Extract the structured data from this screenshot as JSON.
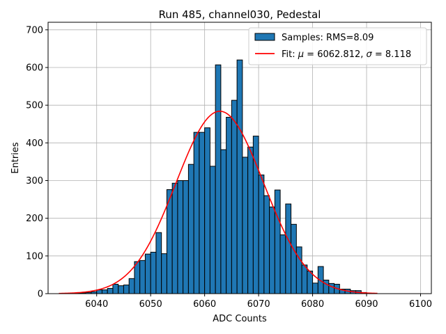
{
  "chart_data": {
    "type": "bar",
    "title": "Run 485, channel030, Pedestal",
    "xlabel": "ADC Counts",
    "ylabel": "Entries",
    "xlim": [
      6031,
      6102
    ],
    "ylim": [
      0,
      720
    ],
    "xticks": [
      6040,
      6050,
      6060,
      6070,
      6080,
      6090,
      6100
    ],
    "yticks": [
      0,
      100,
      200,
      300,
      400,
      500,
      600,
      700
    ],
    "grid": true,
    "legend_position": "top-right",
    "bin_width": 1,
    "histogram": {
      "name": "Samples: RMS=8.09",
      "color": "#1f77b4",
      "edge_color": "#000000",
      "bins": [
        6033,
        6034,
        6035,
        6036,
        6037,
        6038,
        6039,
        6040,
        6041,
        6042,
        6043,
        6044,
        6045,
        6046,
        6047,
        6048,
        6049,
        6050,
        6051,
        6052,
        6053,
        6054,
        6055,
        6056,
        6057,
        6058,
        6059,
        6060,
        6061,
        6062,
        6063,
        6064,
        6065,
        6066,
        6067,
        6068,
        6069,
        6070,
        6071,
        6072,
        6073,
        6074,
        6075,
        6076,
        6077,
        6078,
        6079,
        6080,
        6081,
        6082,
        6083,
        6084,
        6085,
        6086,
        6087,
        6088,
        6089,
        6090,
        6091
      ],
      "values": [
        0,
        0,
        1,
        1,
        2,
        3,
        5,
        10,
        10,
        14,
        25,
        21,
        23,
        40,
        85,
        88,
        105,
        110,
        162,
        106,
        276,
        293,
        300,
        300,
        343,
        428,
        428,
        440,
        338,
        607,
        382,
        468,
        513,
        620,
        362,
        389,
        418,
        315,
        260,
        230,
        275,
        156,
        238,
        184,
        124,
        76,
        60,
        28,
        72,
        36,
        27,
        25,
        12,
        12,
        8,
        8,
        3,
        0,
        0
      ]
    },
    "fit": {
      "name_prefix": "Fit: ",
      "name_mu_symbol": "μ",
      "name_mu_value": " = 6062.812, ",
      "name_sigma_symbol": "σ",
      "name_sigma_value": " = 8.118",
      "color": "#ff0000",
      "mu": 6062.812,
      "sigma": 8.118,
      "amplitude": 484,
      "x_range": [
        6033,
        6092
      ]
    }
  }
}
